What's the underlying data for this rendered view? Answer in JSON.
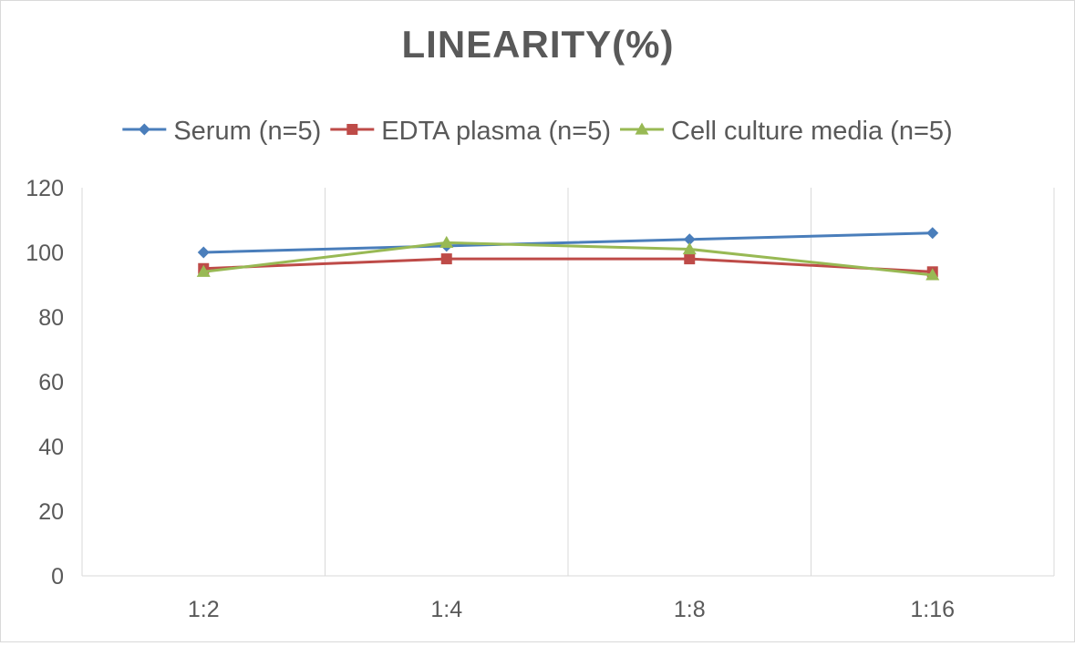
{
  "chart_data": {
    "type": "line",
    "title": "LINEARITY(%)",
    "xlabel": "",
    "ylabel": "",
    "categories": [
      "1:2",
      "1:4",
      "1:8",
      "1:16"
    ],
    "ylim": [
      0,
      120
    ],
    "yticks": [
      0,
      20,
      40,
      60,
      80,
      100,
      120
    ],
    "grid": "vertical",
    "legend_position": "top",
    "series": [
      {
        "name": "Serum (n=5)",
        "values": [
          100,
          102,
          104,
          106
        ],
        "color": "#4a7ebb",
        "marker": "diamond"
      },
      {
        "name": "EDTA plasma (n=5)",
        "values": [
          95,
          98,
          98,
          94
        ],
        "color": "#be4b48",
        "marker": "square"
      },
      {
        "name": "Cell culture media (n=5)",
        "values": [
          94,
          103,
          101,
          93
        ],
        "color": "#98b954",
        "marker": "triangle"
      }
    ]
  }
}
